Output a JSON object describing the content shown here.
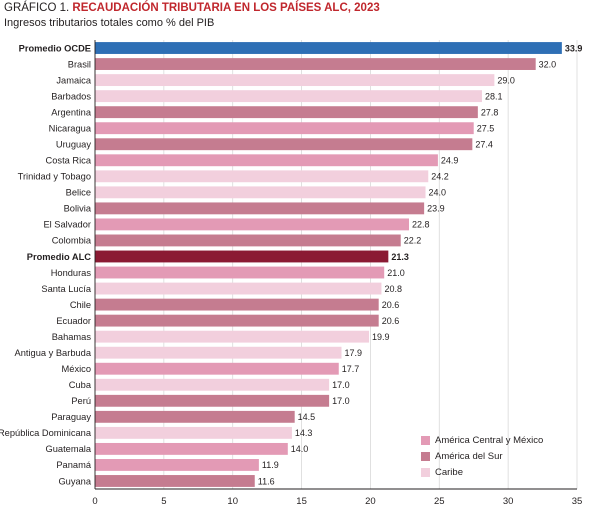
{
  "title": {
    "prefix": "GRÁFICO 1.",
    "main": "RECAUDACIÓN TRIBUTARIA EN LOS PAÍSES ALC, 2023"
  },
  "subtitle": "Ingresos tributarios totales como % del PIB",
  "colors": {
    "central": "#e39ab5",
    "sur": "#c57c90",
    "caribe": "#f2cfdd",
    "oecd": "#2e6fb5",
    "alc": "#8b1a33"
  },
  "legend": [
    {
      "key": "central",
      "label": "América Central y México"
    },
    {
      "key": "sur",
      "label": "América del Sur"
    },
    {
      "key": "caribe",
      "label": "Caribe"
    }
  ],
  "chart_data": {
    "type": "bar",
    "orientation": "horizontal",
    "xlim": [
      0,
      35
    ],
    "xticks": [
      0,
      5,
      10,
      15,
      20,
      25,
      30,
      35
    ],
    "grid": "vertical",
    "legend_position": "bottom-right",
    "bars": [
      {
        "label": "Promedio OCDE",
        "value": 33.9,
        "value_label": "33.9",
        "group": "oecd",
        "bold": true
      },
      {
        "label": "Brasil",
        "value": 32.0,
        "value_label": "32.0",
        "group": "sur"
      },
      {
        "label": "Jamaica",
        "value": 29.0,
        "value_label": "29.0",
        "group": "caribe"
      },
      {
        "label": "Barbados",
        "value": 28.1,
        "value_label": "28.1",
        "group": "caribe"
      },
      {
        "label": "Argentina",
        "value": 27.8,
        "value_label": "27.8",
        "group": "sur"
      },
      {
        "label": "Nicaragua",
        "value": 27.5,
        "value_label": "27.5",
        "group": "central"
      },
      {
        "label": "Uruguay",
        "value": 27.4,
        "value_label": "27.4",
        "group": "sur"
      },
      {
        "label": "Costa Rica",
        "value": 24.9,
        "value_label": "24.9",
        "group": "central"
      },
      {
        "label": "Trinidad y Tobago",
        "value": 24.2,
        "value_label": "24.2",
        "group": "caribe"
      },
      {
        "label": "Belice",
        "value": 24.0,
        "value_label": "24.0",
        "group": "caribe"
      },
      {
        "label": "Bolivia",
        "value": 23.9,
        "value_label": "23.9",
        "group": "sur"
      },
      {
        "label": "El Salvador",
        "value": 22.8,
        "value_label": "22.8",
        "group": "central"
      },
      {
        "label": "Colombia",
        "value": 22.2,
        "value_label": "22.2",
        "group": "sur"
      },
      {
        "label": "Promedio ALC",
        "value": 21.3,
        "value_label": "21.3",
        "group": "alc",
        "bold": true
      },
      {
        "label": "Honduras",
        "value": 21.0,
        "value_label": "21.0",
        "group": "central"
      },
      {
        "label": "Santa Lucía",
        "value": 20.8,
        "value_label": "20.8",
        "group": "caribe"
      },
      {
        "label": "Chile",
        "value": 20.6,
        "value_label": "20.6",
        "group": "sur"
      },
      {
        "label": "Ecuador",
        "value": 20.6,
        "value_label": "20.6",
        "group": "sur"
      },
      {
        "label": "Bahamas",
        "value": 19.9,
        "value_label": "19.9",
        "group": "caribe"
      },
      {
        "label": "Antigua y Barbuda",
        "value": 17.9,
        "value_label": "17.9",
        "group": "caribe"
      },
      {
        "label": "México",
        "value": 17.7,
        "value_label": "17.7",
        "group": "central"
      },
      {
        "label": "Cuba",
        "value": 17.0,
        "value_label": "17.0",
        "group": "caribe"
      },
      {
        "label": "Perú",
        "value": 17.0,
        "value_label": "17.0",
        "group": "sur"
      },
      {
        "label": "Paraguay",
        "value": 14.5,
        "value_label": "14.5",
        "group": "sur"
      },
      {
        "label": "República Dominicana",
        "value": 14.3,
        "value_label": "14.3",
        "group": "caribe"
      },
      {
        "label": "Guatemala",
        "value": 14.0,
        "value_label": "14.0",
        "group": "central"
      },
      {
        "label": "Panamá",
        "value": 11.9,
        "value_label": "11.9",
        "group": "central"
      },
      {
        "label": "Guyana",
        "value": 11.6,
        "value_label": "11.6",
        "group": "sur"
      }
    ]
  }
}
